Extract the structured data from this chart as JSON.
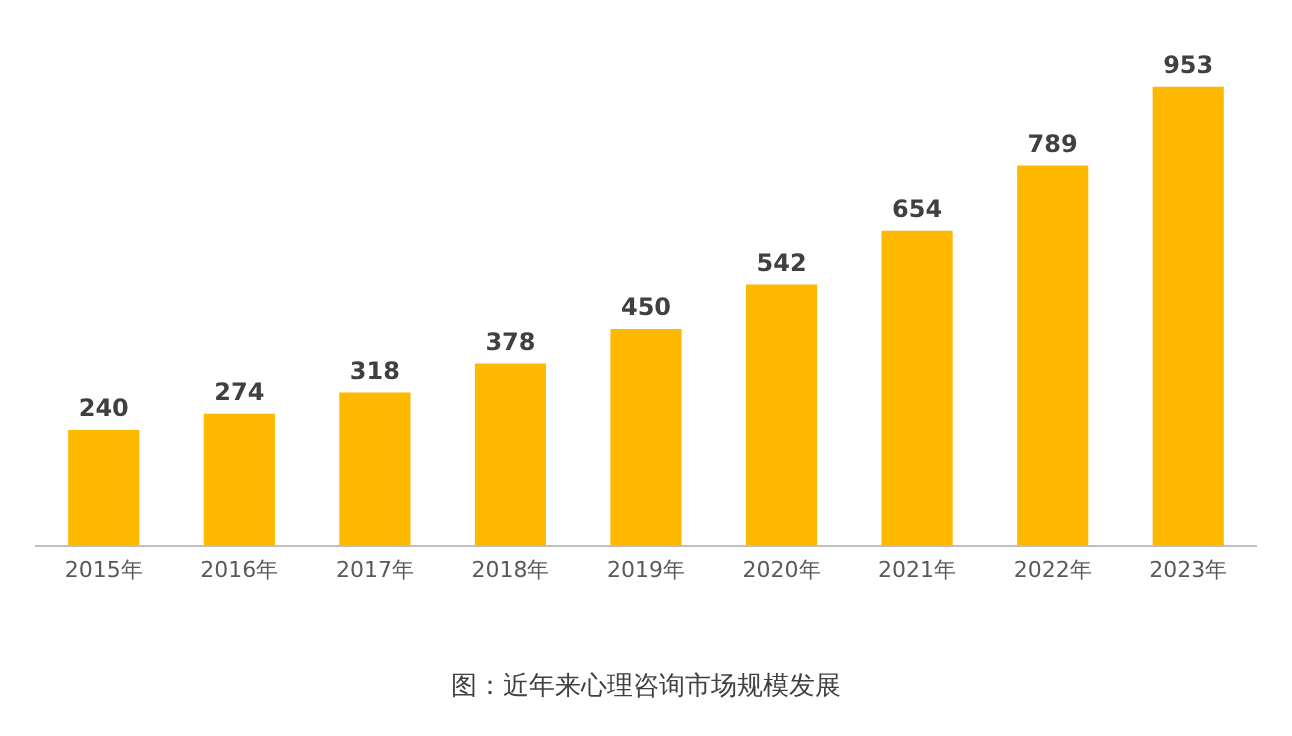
{
  "chart_data": {
    "type": "bar",
    "categories": [
      "2015年",
      "2016年",
      "2017年",
      "2018年",
      "2019年",
      "2020年",
      "2021年",
      "2022年",
      "2023年"
    ],
    "values": [
      240,
      274,
      318,
      378,
      450,
      542,
      654,
      789,
      953
    ],
    "color": "#ffb800",
    "data_labels": true,
    "grid": false,
    "legend": false,
    "tick_labels": "x",
    "annotations": [
      "图：近年来心理咨询市场规模发展"
    ]
  }
}
